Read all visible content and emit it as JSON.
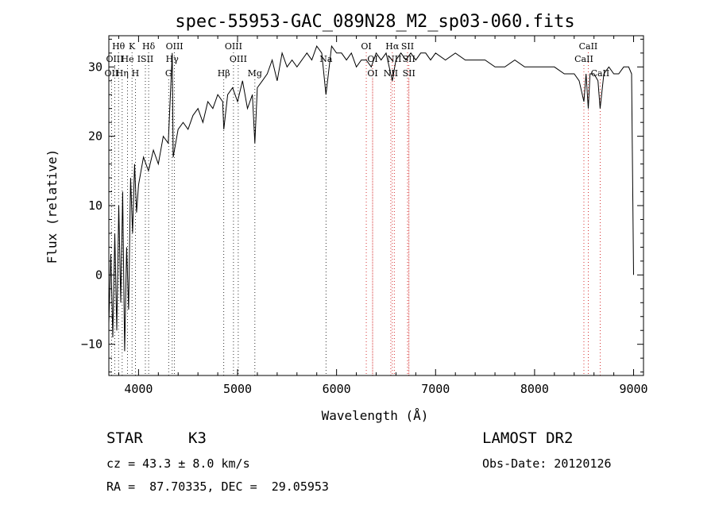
{
  "chart_data": {
    "type": "line",
    "title": "spec-55953-GAC_089N28_M2_sp03-060.fits",
    "xlabel": "Wavelength (Å)",
    "ylabel": "Flux (relative)",
    "xlim": [
      3700,
      9100
    ],
    "ylim": [
      -14.5,
      34.5
    ],
    "x_ticks": [
      4000,
      5000,
      6000,
      7000,
      8000,
      9000
    ],
    "y_ticks": [
      -10,
      0,
      10,
      20,
      30
    ],
    "grid": false,
    "legend": "none",
    "series": [
      {
        "x": [
          3700,
          3720,
          3740,
          3760,
          3780,
          3800,
          3820,
          3840,
          3860,
          3880,
          3900,
          3920,
          3940,
          3960,
          3980,
          4000,
          4050,
          4100,
          4150,
          4200,
          4250,
          4300,
          4340,
          4350,
          4400,
          4450,
          4500,
          4550,
          4600,
          4650,
          4700,
          4750,
          4800,
          4850,
          4861,
          4900,
          4950,
          5000,
          5050,
          5100,
          5150,
          5175,
          5200,
          5250,
          5300,
          5350,
          5400,
          5450,
          5500,
          5550,
          5600,
          5650,
          5700,
          5750,
          5800,
          5850,
          5893,
          5950,
          6000,
          6050,
          6100,
          6150,
          6200,
          6250,
          6300,
          6350,
          6400,
          6450,
          6500,
          6563,
          6600,
          6650,
          6700,
          6750,
          6800,
          6850,
          6900,
          6950,
          7000,
          7100,
          7200,
          7300,
          7400,
          7500,
          7600,
          7700,
          7800,
          7900,
          8000,
          8100,
          8200,
          8300,
          8400,
          8450,
          8498,
          8520,
          8542,
          8560,
          8600,
          8640,
          8662,
          8700,
          8750,
          8800,
          8850,
          8900,
          8950,
          8980,
          9000
        ],
        "y": [
          -7,
          3,
          -9,
          6,
          -8,
          10,
          -4,
          12,
          -11,
          4,
          -5,
          14,
          6,
          16,
          9,
          13,
          17,
          15,
          18,
          16,
          20,
          19,
          32,
          17,
          21,
          22,
          21,
          23,
          24,
          22,
          25,
          24,
          26,
          25,
          21,
          26,
          27,
          25,
          28,
          24,
          26,
          19,
          27,
          28,
          29,
          31,
          28,
          32,
          30,
          31,
          30,
          31,
          32,
          31,
          33,
          32,
          26,
          33,
          32,
          32,
          31,
          32,
          30,
          31,
          31,
          30,
          32,
          31,
          32,
          28,
          31,
          32,
          31,
          32,
          31,
          32,
          32,
          31,
          32,
          31,
          32,
          31,
          31,
          31,
          30,
          30,
          31,
          30,
          30,
          30,
          30,
          29,
          29,
          28,
          25,
          29,
          24,
          29,
          29,
          28,
          24,
          29,
          30,
          29,
          29,
          30,
          30,
          29,
          0
        ]
      }
    ],
    "line_markers": [
      {
        "label": "Hθ",
        "wavelength": 3798,
        "color": "black",
        "row": 1
      },
      {
        "label": "K",
        "wavelength": 3934,
        "color": "black",
        "row": 1
      },
      {
        "label": "Hδ",
        "wavelength": 4102,
        "color": "black",
        "row": 1
      },
      {
        "label": "OIII",
        "wavelength": 4363,
        "color": "black",
        "row": 1
      },
      {
        "label": "OIII",
        "wavelength": 4959,
        "color": "black",
        "row": 1
      },
      {
        "label": "OI",
        "wavelength": 6300,
        "color": "red",
        "row": 1
      },
      {
        "label": "Hα",
        "wavelength": 6563,
        "color": "red",
        "row": 1
      },
      {
        "label": "SII",
        "wavelength": 6717,
        "color": "red",
        "row": 1
      },
      {
        "label": "CaII",
        "wavelength": 8542,
        "color": "red",
        "row": 1
      },
      {
        "label": "OIII",
        "wavelength": 3760,
        "color": "black",
        "row": 2
      },
      {
        "label": "He",
        "wavelength": 3889,
        "color": "black",
        "row": 2
      },
      {
        "label": "ISII",
        "wavelength": 4069,
        "color": "black",
        "row": 2
      },
      {
        "label": "Hγ",
        "wavelength": 4340,
        "color": "black",
        "row": 2
      },
      {
        "label": "OIII",
        "wavelength": 5007,
        "color": "black",
        "row": 2
      },
      {
        "label": "Na",
        "wavelength": 5893,
        "color": "black",
        "row": 2
      },
      {
        "label": "OI",
        "wavelength": 6364,
        "color": "red",
        "row": 2
      },
      {
        "label": "NII",
        "wavelength": 6583,
        "color": "red",
        "row": 2
      },
      {
        "label": "SII",
        "wavelength": 6731,
        "color": "red",
        "row": 2
      },
      {
        "label": "CaII",
        "wavelength": 8498,
        "color": "red",
        "row": 2
      },
      {
        "label": "OII",
        "wavelength": 3727,
        "color": "black",
        "row": 3
      },
      {
        "label": "Hη",
        "wavelength": 3835,
        "color": "black",
        "row": 3
      },
      {
        "label": "H",
        "wavelength": 3968,
        "color": "black",
        "row": 3
      },
      {
        "label": "G",
        "wavelength": 4304,
        "color": "black",
        "row": 3
      },
      {
        "label": "Hβ",
        "wavelength": 4861,
        "color": "black",
        "row": 3
      },
      {
        "label": "Mg",
        "wavelength": 5175,
        "color": "black",
        "row": 3
      },
      {
        "label": "OI",
        "wavelength": 6364,
        "color": "red",
        "row": 3
      },
      {
        "label": "NII",
        "wavelength": 6548,
        "color": "red",
        "row": 3
      },
      {
        "label": "SII",
        "wavelength": 6731,
        "color": "red",
        "row": 3
      },
      {
        "label": "CaII",
        "wavelength": 8662,
        "color": "red",
        "row": 3
      }
    ]
  },
  "info": {
    "object_type": "STAR",
    "subclass": "K3",
    "survey": "LAMOST DR2",
    "redshift": "cz = 43.3 ± 8.0 km/s",
    "obs_date": "Obs-Date: 20120126",
    "coords": "RA =  87.70335, DEC =  29.05953"
  }
}
